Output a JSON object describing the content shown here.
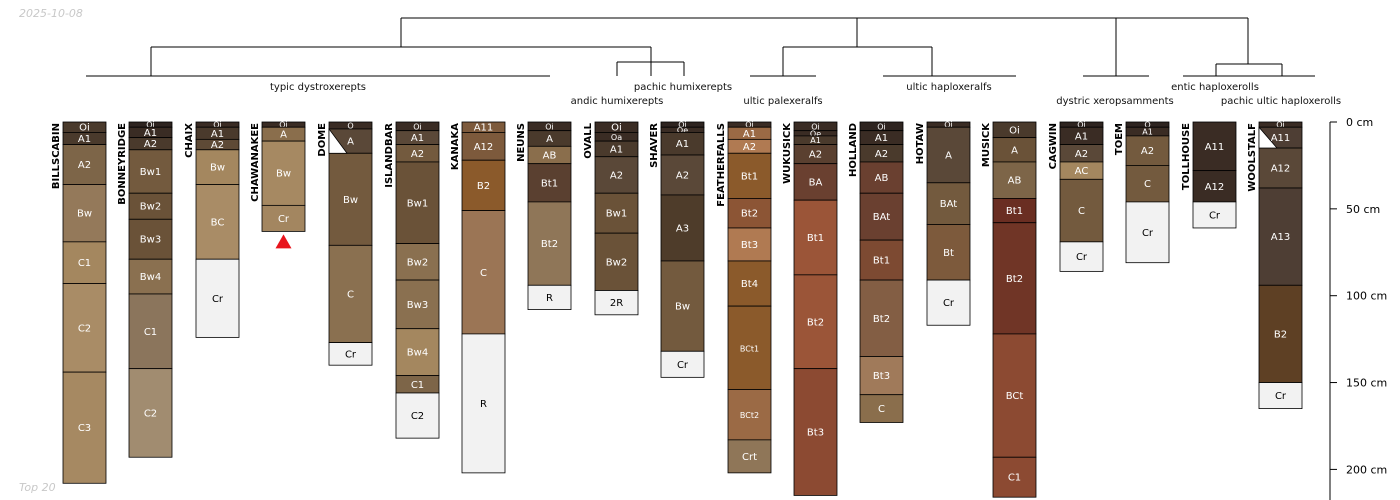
{
  "header": {
    "date": "2025-10-08",
    "footer": "Top 20"
  },
  "axis": {
    "unit": "cm",
    "ticks": [
      0,
      50,
      100,
      150,
      200
    ]
  },
  "dendrogram": {
    "labels": [
      "typic dystroxerepts",
      "pachic humixerepts",
      "andic humixerepts",
      "ultic palexeralfs",
      "ultic haploxeralfs",
      "dystric xeropsamments",
      "entic haploxerolls",
      "pachic ultic haploxerolls"
    ]
  },
  "profiles": [
    {
      "name": "BILLSCABIN",
      "horizons": [
        {
          "name": "Oi",
          "top": 0,
          "bottom": 6,
          "color": "#4a3a2c"
        },
        {
          "name": "A1",
          "top": 6,
          "bottom": 13,
          "color": "#4a3a2c"
        },
        {
          "name": "A2",
          "top": 13,
          "bottom": 36,
          "color": "#7d6548"
        },
        {
          "name": "Bw",
          "top": 36,
          "bottom": 69,
          "color": "#94795a"
        },
        {
          "name": "C1",
          "top": 69,
          "bottom": 93,
          "color": "#a4875f"
        },
        {
          "name": "C2",
          "top": 93,
          "bottom": 144,
          "color": "#a98c66"
        },
        {
          "name": "C3",
          "top": 144,
          "bottom": 208,
          "color": "#a68962"
        }
      ]
    },
    {
      "name": "BONNEYRIDGE",
      "horizons": [
        {
          "name": "Oi",
          "top": 0,
          "bottom": 3,
          "color": "#2e2420"
        },
        {
          "name": "A1",
          "top": 3,
          "bottom": 9,
          "color": "#3a2c24"
        },
        {
          "name": "A2",
          "top": 9,
          "bottom": 16,
          "color": "#4a3a2c"
        },
        {
          "name": "Bw1",
          "top": 16,
          "bottom": 41,
          "color": "#735a3e"
        },
        {
          "name": "Bw2",
          "top": 41,
          "bottom": 56,
          "color": "#6a5238"
        },
        {
          "name": "Bw3",
          "top": 56,
          "bottom": 79,
          "color": "#6a5238"
        },
        {
          "name": "Bw4",
          "top": 79,
          "bottom": 99,
          "color": "#8a7050"
        },
        {
          "name": "C1",
          "top": 99,
          "bottom": 142,
          "color": "#8b755c"
        },
        {
          "name": "C2",
          "top": 142,
          "bottom": 193,
          "color": "#a18c70"
        }
      ]
    },
    {
      "name": "CHAIX",
      "horizons": [
        {
          "name": "Oi",
          "top": 0,
          "bottom": 3,
          "color": "#3a2c24"
        },
        {
          "name": "A1",
          "top": 3,
          "bottom": 10,
          "color": "#4a3a2c"
        },
        {
          "name": "A2",
          "top": 10,
          "bottom": 16,
          "color": "#5e4a36"
        },
        {
          "name": "Bw",
          "top": 16,
          "bottom": 36,
          "color": "#a4875f"
        },
        {
          "name": "BC",
          "top": 36,
          "bottom": 79,
          "color": "#a98c66"
        },
        {
          "name": "Cr",
          "top": 79,
          "bottom": 124,
          "color": "#f2f2f2"
        }
      ]
    },
    {
      "name": "CHAWANAKEE",
      "horizons": [
        {
          "name": "Oi",
          "top": 0,
          "bottom": 3,
          "color": "#3a2c24"
        },
        {
          "name": "A",
          "top": 3,
          "bottom": 11,
          "color": "#8a6e4c"
        },
        {
          "name": "Bw",
          "top": 11,
          "bottom": 48,
          "color": "#a68962"
        },
        {
          "name": "Cr",
          "top": 48,
          "bottom": 63,
          "color": "#a38660"
        }
      ]
    },
    {
      "name": "DOME",
      "horizons": [
        {
          "name": "O",
          "top": 0,
          "bottom": 4,
          "color": "#3a2c24"
        },
        {
          "name": "A",
          "top": 4,
          "bottom": 18,
          "color": "#5a4838"
        },
        {
          "name": "Bw",
          "top": 18,
          "bottom": 71,
          "color": "#735a3e"
        },
        {
          "name": "C",
          "top": 71,
          "bottom": 127,
          "color": "#8a7050"
        },
        {
          "name": "Cr",
          "top": 127,
          "bottom": 140,
          "color": "#f2f2f2"
        }
      ]
    },
    {
      "name": "ISLANDBAR",
      "horizons": [
        {
          "name": "Oi",
          "top": 0,
          "bottom": 5,
          "color": "#3a2c24"
        },
        {
          "name": "A1",
          "top": 5,
          "bottom": 13,
          "color": "#5a4838"
        },
        {
          "name": "A2",
          "top": 13,
          "bottom": 23,
          "color": "#735a3e"
        },
        {
          "name": "Bw1",
          "top": 23,
          "bottom": 70,
          "color": "#6a5238"
        },
        {
          "name": "Bw2",
          "top": 70,
          "bottom": 91,
          "color": "#8a7050"
        },
        {
          "name": "Bw3",
          "top": 91,
          "bottom": 119,
          "color": "#8a7050"
        },
        {
          "name": "Bw4",
          "top": 119,
          "bottom": 146,
          "color": "#a4875f"
        },
        {
          "name": "C1",
          "top": 146,
          "bottom": 156,
          "color": "#7d6548"
        },
        {
          "name": "C2",
          "top": 156,
          "bottom": 182,
          "color": "#f2f2f2"
        }
      ]
    },
    {
      "name": "KANAKA",
      "horizons": [
        {
          "name": "A11",
          "top": 0,
          "bottom": 6,
          "color": "#7d5a3c"
        },
        {
          "name": "A12",
          "top": 6,
          "bottom": 22,
          "color": "#7d5a3c"
        },
        {
          "name": "B2",
          "top": 22,
          "bottom": 51,
          "color": "#8b5a2b"
        },
        {
          "name": "C",
          "top": 51,
          "bottom": 122,
          "color": "#9b7555"
        },
        {
          "name": "R",
          "top": 122,
          "bottom": 202,
          "color": "#f2f2f2"
        }
      ]
    },
    {
      "name": "NEUNS",
      "horizons": [
        {
          "name": "Oi",
          "top": 0,
          "bottom": 5,
          "color": "#3a2c24"
        },
        {
          "name": "A",
          "top": 5,
          "bottom": 14,
          "color": "#4a3a2c"
        },
        {
          "name": "AB",
          "top": 14,
          "bottom": 24,
          "color": "#8a6e4c"
        },
        {
          "name": "Bt1",
          "top": 24,
          "bottom": 46,
          "color": "#5a4030"
        },
        {
          "name": "Bt2",
          "top": 46,
          "bottom": 94,
          "color": "#8f7658"
        },
        {
          "name": "R",
          "top": 94,
          "bottom": 108,
          "color": "#f2f2f2"
        }
      ]
    },
    {
      "name": "OVALL",
      "horizons": [
        {
          "name": "Oi",
          "top": 0,
          "bottom": 6,
          "color": "#3a2c24"
        },
        {
          "name": "Oa",
          "top": 6,
          "bottom": 11,
          "color": "#3a2c24"
        },
        {
          "name": "A1",
          "top": 11,
          "bottom": 20,
          "color": "#4a3a2c"
        },
        {
          "name": "A2",
          "top": 20,
          "bottom": 41,
          "color": "#5a4838"
        },
        {
          "name": "Bw1",
          "top": 41,
          "bottom": 64,
          "color": "#6a5238"
        },
        {
          "name": "Bw2",
          "top": 64,
          "bottom": 97,
          "color": "#6a5238"
        },
        {
          "name": "2R",
          "top": 97,
          "bottom": 111,
          "color": "#f2f2f2"
        }
      ]
    },
    {
      "name": "SHAVER",
      "horizons": [
        {
          "name": "Oi",
          "top": 0,
          "bottom": 3,
          "color": "#2e2420"
        },
        {
          "name": "Oe",
          "top": 3,
          "bottom": 6,
          "color": "#3a2c24"
        },
        {
          "name": "A1",
          "top": 6,
          "bottom": 19,
          "color": "#4a3a2c"
        },
        {
          "name": "A2",
          "top": 19,
          "bottom": 42,
          "color": "#5a4838"
        },
        {
          "name": "A3",
          "top": 42,
          "bottom": 80,
          "color": "#4e3c2a"
        },
        {
          "name": "Bw",
          "top": 80,
          "bottom": 132,
          "color": "#735a3e"
        },
        {
          "name": "Cr",
          "top": 132,
          "bottom": 147,
          "color": "#f2f2f2"
        }
      ]
    },
    {
      "name": "FEATHERFALLS",
      "horizons": [
        {
          "name": "Oi",
          "top": 0,
          "bottom": 3,
          "color": "#3a2c24"
        },
        {
          "name": "A1",
          "top": 3,
          "bottom": 10,
          "color": "#9b6a45"
        },
        {
          "name": "A2",
          "top": 10,
          "bottom": 18,
          "color": "#b07a52"
        },
        {
          "name": "Bt1",
          "top": 18,
          "bottom": 44,
          "color": "#8b5a2b"
        },
        {
          "name": "Bt2",
          "top": 44,
          "bottom": 61,
          "color": "#8c5535"
        },
        {
          "name": "Bt3",
          "top": 61,
          "bottom": 80,
          "color": "#b07a52"
        },
        {
          "name": "Bt4",
          "top": 80,
          "bottom": 106,
          "color": "#8b5a2b"
        },
        {
          "name": "BCt1",
          "top": 106,
          "bottom": 154,
          "color": "#8b5a2b"
        },
        {
          "name": "BCt2",
          "top": 154,
          "bottom": 183,
          "color": "#9b6a45"
        },
        {
          "name": "Crt",
          "top": 183,
          "bottom": 202,
          "color": "#8f7658"
        }
      ]
    },
    {
      "name": "WUKUSICK",
      "horizons": [
        {
          "name": "Oi",
          "top": 0,
          "bottom": 5,
          "color": "#3a2c24"
        },
        {
          "name": "Oe",
          "top": 5,
          "bottom": 8,
          "color": "#3a2c24"
        },
        {
          "name": "A1",
          "top": 8,
          "bottom": 13,
          "color": "#4a3a2c"
        },
        {
          "name": "A2",
          "top": 13,
          "bottom": 24,
          "color": "#5a4030"
        },
        {
          "name": "BA",
          "top": 24,
          "bottom": 45,
          "color": "#6a4030"
        },
        {
          "name": "Bt1",
          "top": 45,
          "bottom": 88,
          "color": "#9b5538"
        },
        {
          "name": "Bt2",
          "top": 88,
          "bottom": 142,
          "color": "#9b5538"
        },
        {
          "name": "Bt3",
          "top": 142,
          "bottom": 215,
          "color": "#8c4a32"
        }
      ]
    },
    {
      "name": "HOLLAND",
      "horizons": [
        {
          "name": "Oi",
          "top": 0,
          "bottom": 5,
          "color": "#2e2420"
        },
        {
          "name": "A1",
          "top": 5,
          "bottom": 13,
          "color": "#3a2c24"
        },
        {
          "name": "A2",
          "top": 13,
          "bottom": 23,
          "color": "#4a3a2c"
        },
        {
          "name": "AB",
          "top": 23,
          "bottom": 41,
          "color": "#6a4030"
        },
        {
          "name": "BAt",
          "top": 41,
          "bottom": 68,
          "color": "#6a4030"
        },
        {
          "name": "Bt1",
          "top": 68,
          "bottom": 91,
          "color": "#7d4a32"
        },
        {
          "name": "Bt2",
          "top": 91,
          "bottom": 135,
          "color": "#835e44"
        },
        {
          "name": "Bt3",
          "top": 135,
          "bottom": 157,
          "color": "#a07a5a"
        },
        {
          "name": "C",
          "top": 157,
          "bottom": 173,
          "color": "#8a6e4c"
        }
      ]
    },
    {
      "name": "HOTAW",
      "horizons": [
        {
          "name": "Oi",
          "top": 0,
          "bottom": 3,
          "color": "#3a2c24"
        },
        {
          "name": "A",
          "top": 3,
          "bottom": 35,
          "color": "#5a4838"
        },
        {
          "name": "BAt",
          "top": 35,
          "bottom": 59,
          "color": "#735a3e"
        },
        {
          "name": "Bt",
          "top": 59,
          "bottom": 91,
          "color": "#7d5a3c"
        },
        {
          "name": "Cr",
          "top": 91,
          "bottom": 117,
          "color": "#f2f2f2"
        }
      ]
    },
    {
      "name": "MUSICK",
      "horizons": [
        {
          "name": "Oi",
          "top": 0,
          "bottom": 9,
          "color": "#4a3a2c"
        },
        {
          "name": "A",
          "top": 9,
          "bottom": 23,
          "color": "#6a5238"
        },
        {
          "name": "AB",
          "top": 23,
          "bottom": 44,
          "color": "#7d6548"
        },
        {
          "name": "Bt1",
          "top": 44,
          "bottom": 58,
          "color": "#6a2e22"
        },
        {
          "name": "Bt2",
          "top": 58,
          "bottom": 122,
          "color": "#703526"
        },
        {
          "name": "BCt",
          "top": 122,
          "bottom": 193,
          "color": "#8c4a32"
        },
        {
          "name": "C1",
          "top": 193,
          "bottom": 216,
          "color": "#8c4a32"
        }
      ]
    },
    {
      "name": "CAGWIN",
      "horizons": [
        {
          "name": "Oi",
          "top": 0,
          "bottom": 3,
          "color": "#2e2420"
        },
        {
          "name": "A1",
          "top": 3,
          "bottom": 13,
          "color": "#3a2c24"
        },
        {
          "name": "A2",
          "top": 13,
          "bottom": 23,
          "color": "#5a4838"
        },
        {
          "name": "AC",
          "top": 23,
          "bottom": 33,
          "color": "#a4875f"
        },
        {
          "name": "C",
          "top": 33,
          "bottom": 69,
          "color": "#735a3e"
        },
        {
          "name": "Cr",
          "top": 69,
          "bottom": 86,
          "color": "#f2f2f2"
        }
      ]
    },
    {
      "name": "TOEM",
      "horizons": [
        {
          "name": "O",
          "top": 0,
          "bottom": 3,
          "color": "#2e2420"
        },
        {
          "name": "A1",
          "top": 3,
          "bottom": 8,
          "color": "#3a2c24"
        },
        {
          "name": "A2",
          "top": 8,
          "bottom": 25,
          "color": "#735a3e"
        },
        {
          "name": "C",
          "top": 25,
          "bottom": 46,
          "color": "#735a3e"
        },
        {
          "name": "Cr",
          "top": 46,
          "bottom": 81,
          "color": "#f2f2f2"
        }
      ]
    },
    {
      "name": "TOLLHOUSE",
      "horizons": [
        {
          "name": "A11",
          "top": 0,
          "bottom": 28,
          "color": "#3a2c24"
        },
        {
          "name": "A12",
          "top": 28,
          "bottom": 46,
          "color": "#3a2c24"
        },
        {
          "name": "Cr",
          "top": 46,
          "bottom": 61,
          "color": "#f2f2f2"
        }
      ]
    },
    {
      "name": "WOOLSTALF",
      "horizons": [
        {
          "name": "Oi",
          "top": 0,
          "bottom": 3,
          "color": "#3a2c24"
        },
        {
          "name": "A11",
          "top": 3,
          "bottom": 15,
          "color": "#4e3e34"
        },
        {
          "name": "A12",
          "top": 15,
          "bottom": 38,
          "color": "#5a4838"
        },
        {
          "name": "A13",
          "top": 38,
          "bottom": 94,
          "color": "#4e3e34"
        },
        {
          "name": "B2",
          "top": 94,
          "bottom": 150,
          "color": "#5e4024"
        },
        {
          "name": "Cr",
          "top": 150,
          "bottom": 165,
          "color": "#f2f2f2"
        }
      ]
    }
  ]
}
